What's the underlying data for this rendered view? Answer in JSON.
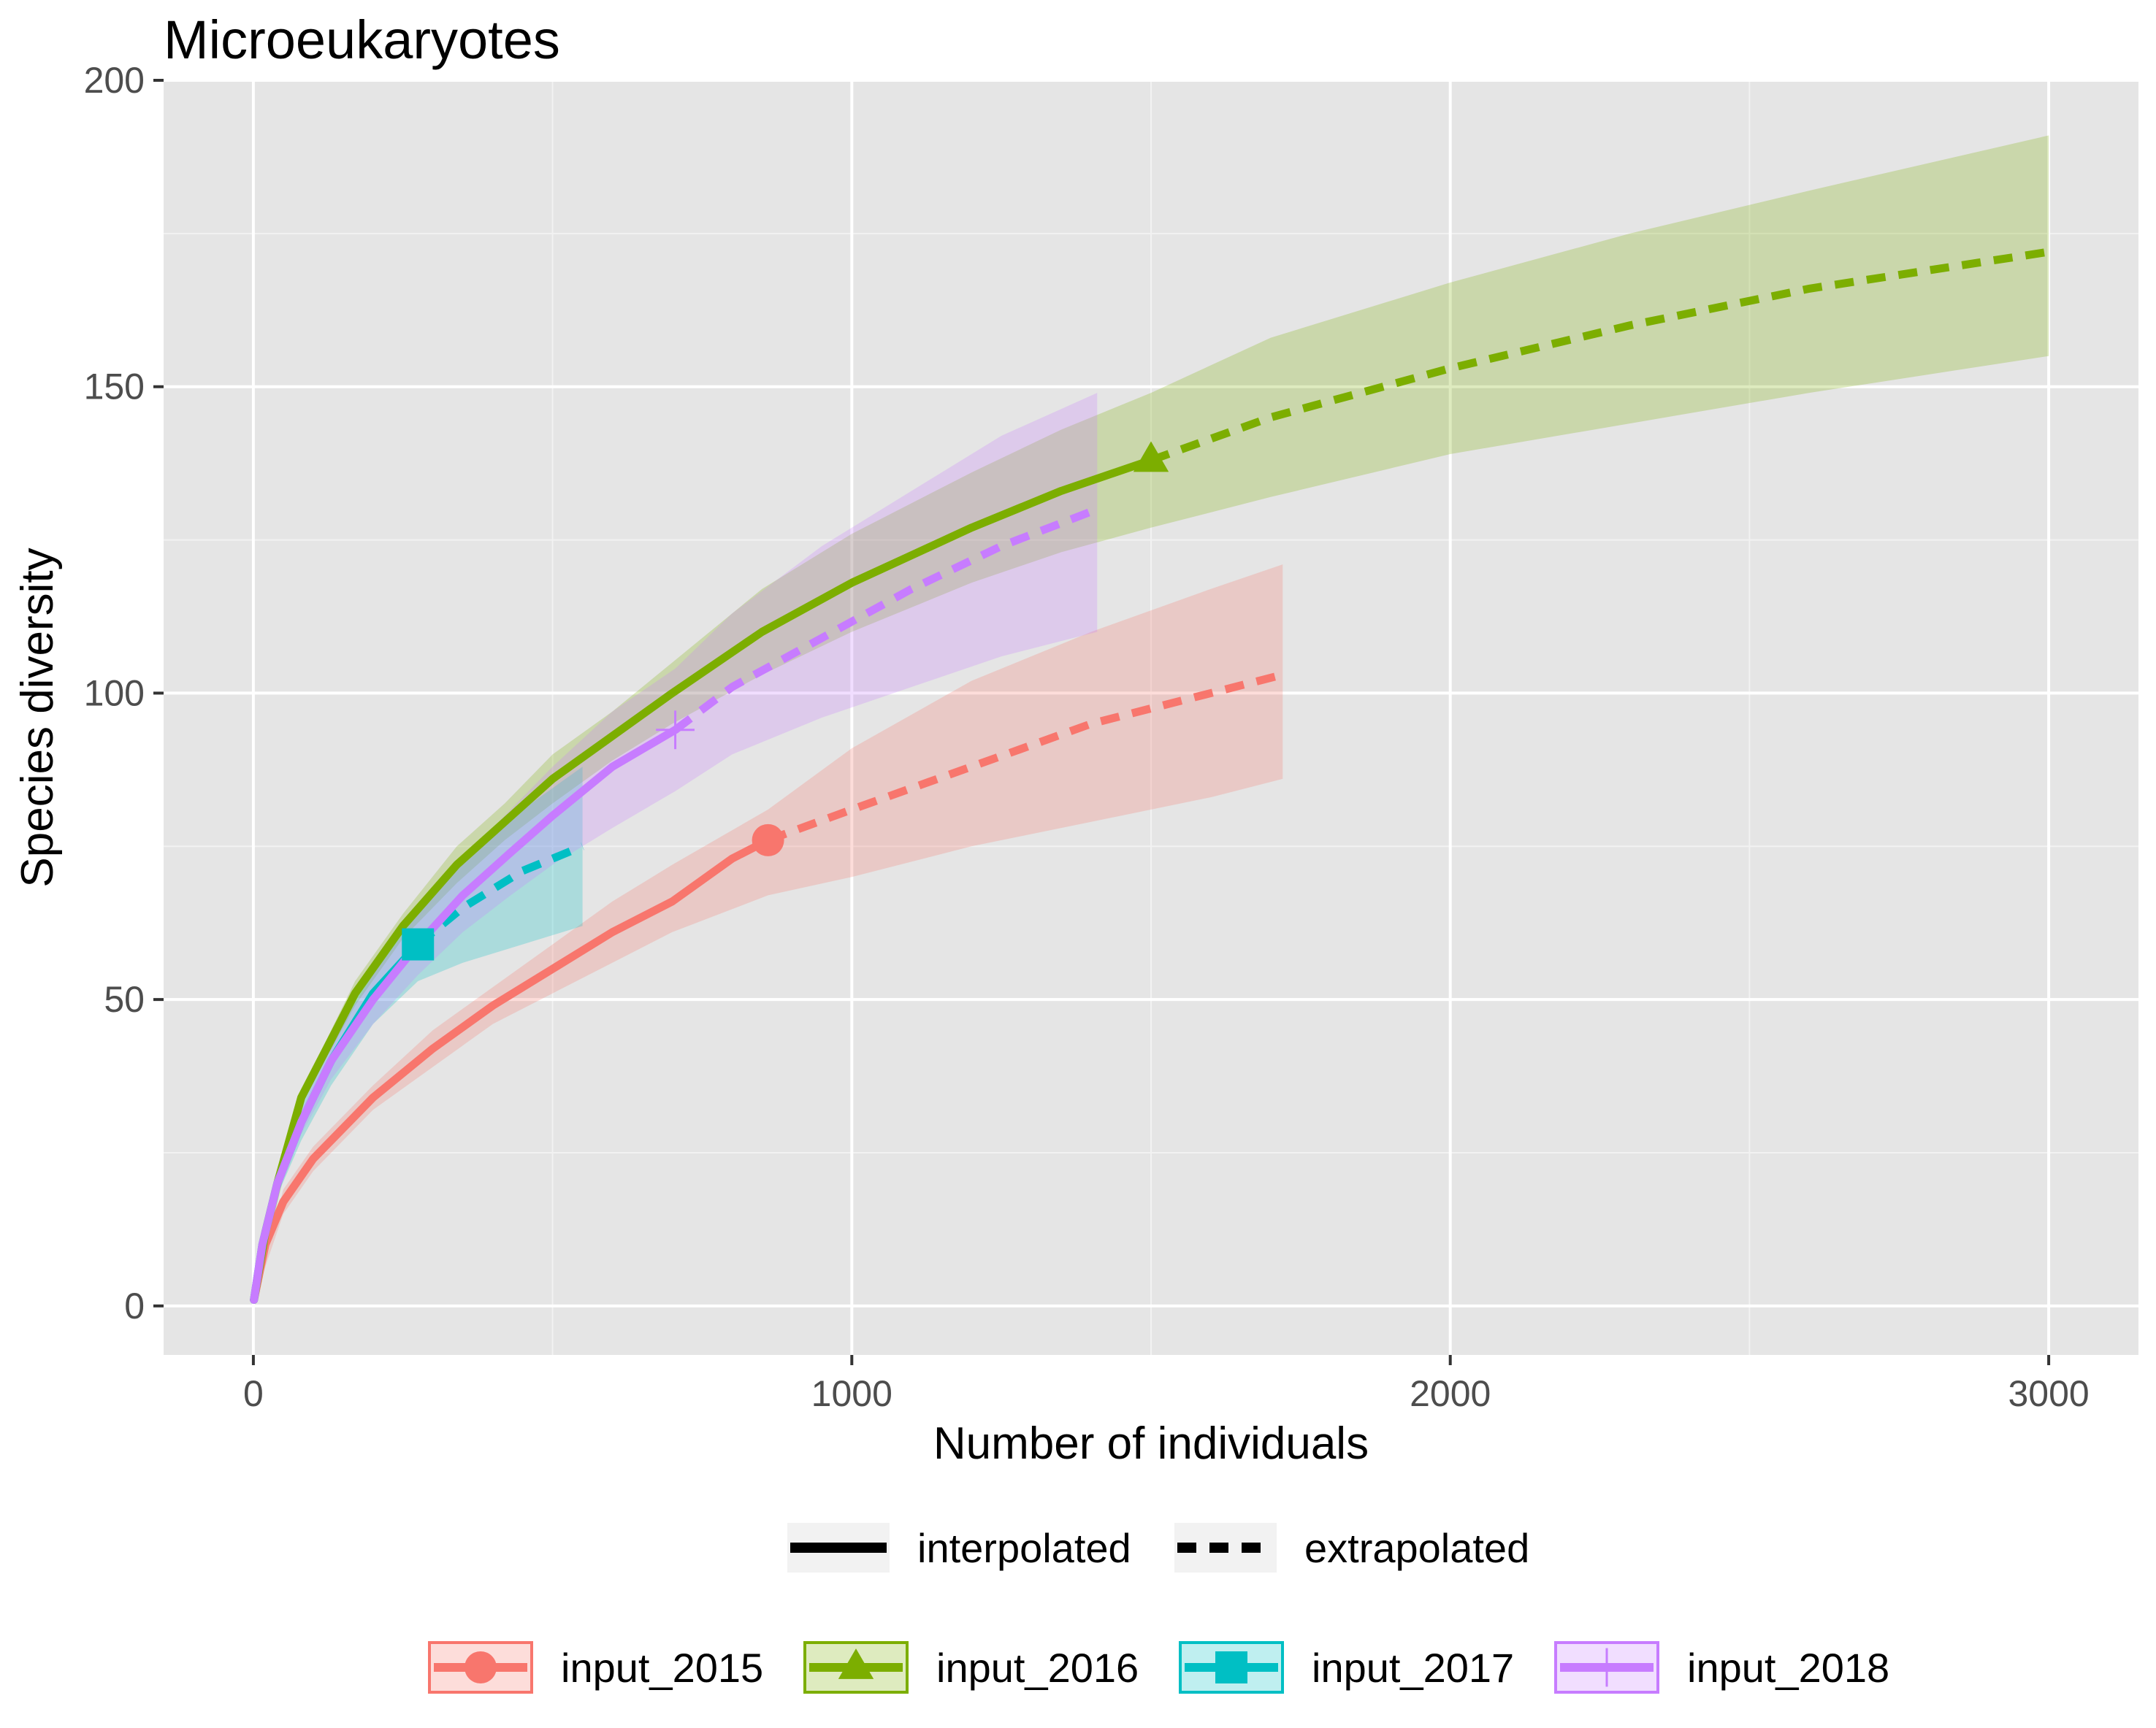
{
  "chart_data": {
    "type": "line",
    "title": "Microeukaryotes",
    "xlabel": "Number of individuals",
    "ylabel": "Species diversity",
    "xlim": [
      -150,
      3150
    ],
    "ylim": [
      -8,
      200
    ],
    "x_ticks": [
      0,
      1000,
      2000,
      3000
    ],
    "x_tick_labels": [
      "0",
      "1000",
      "2000",
      "3000"
    ],
    "y_ticks": [
      0,
      50,
      100,
      150,
      200
    ],
    "y_tick_labels": [
      "0",
      "50",
      "100",
      "150",
      "200"
    ],
    "x_minor_ticks": [
      500,
      1500,
      2500
    ],
    "y_minor_ticks": [
      25,
      75,
      125,
      175
    ],
    "grid": true,
    "legend_position": "bottom",
    "linetype_legend": [
      {
        "label": "interpolated",
        "style": "solid"
      },
      {
        "label": "extrapolated",
        "style": "dashed"
      }
    ],
    "series": [
      {
        "name": "input_2015",
        "color": "#F8766D",
        "marker": "circle",
        "observed": {
          "x": 860,
          "y": 76
        },
        "interpolated": [
          [
            1,
            1
          ],
          [
            20,
            10
          ],
          [
            50,
            17
          ],
          [
            100,
            24
          ],
          [
            200,
            34
          ],
          [
            300,
            42
          ],
          [
            400,
            49
          ],
          [
            500,
            55
          ],
          [
            600,
            61
          ],
          [
            700,
            66
          ],
          [
            800,
            73
          ],
          [
            860,
            76
          ]
        ],
        "extrapolated": [
          [
            860,
            76
          ],
          [
            1000,
            81
          ],
          [
            1200,
            88
          ],
          [
            1400,
            95
          ],
          [
            1600,
            100
          ],
          [
            1720,
            103
          ]
        ],
        "ci_lower": [
          [
            1,
            1
          ],
          [
            50,
            15
          ],
          [
            100,
            22
          ],
          [
            200,
            32
          ],
          [
            300,
            39
          ],
          [
            400,
            46
          ],
          [
            500,
            51
          ],
          [
            600,
            56
          ],
          [
            700,
            61
          ],
          [
            860,
            67
          ],
          [
            1000,
            70
          ],
          [
            1200,
            75
          ],
          [
            1400,
            79
          ],
          [
            1600,
            83
          ],
          [
            1720,
            86
          ]
        ],
        "ci_upper": [
          [
            1,
            1
          ],
          [
            50,
            19
          ],
          [
            100,
            26
          ],
          [
            200,
            36
          ],
          [
            300,
            45
          ],
          [
            400,
            52
          ],
          [
            500,
            59
          ],
          [
            600,
            66
          ],
          [
            700,
            72
          ],
          [
            860,
            81
          ],
          [
            1000,
            91
          ],
          [
            1200,
            102
          ],
          [
            1400,
            110
          ],
          [
            1600,
            117
          ],
          [
            1720,
            121
          ]
        ]
      },
      {
        "name": "input_2016",
        "color": "#7CAE00",
        "marker": "triangle",
        "observed": {
          "x": 1500,
          "y": 138
        },
        "interpolated": [
          [
            1,
            1
          ],
          [
            20,
            12
          ],
          [
            40,
            20
          ],
          [
            80,
            34
          ],
          [
            170,
            51
          ],
          [
            250,
            62
          ],
          [
            340,
            72
          ],
          [
            420,
            79
          ],
          [
            500,
            86
          ],
          [
            600,
            93
          ],
          [
            700,
            100
          ],
          [
            850,
            110
          ],
          [
            1000,
            118
          ],
          [
            1200,
            127
          ],
          [
            1350,
            133
          ],
          [
            1500,
            138
          ]
        ],
        "extrapolated": [
          [
            1500,
            138
          ],
          [
            1700,
            145
          ],
          [
            2000,
            153
          ],
          [
            2300,
            160
          ],
          [
            2600,
            166
          ],
          [
            3000,
            172
          ]
        ],
        "ci_lower": [
          [
            1,
            1
          ],
          [
            80,
            33
          ],
          [
            170,
            49
          ],
          [
            250,
            60
          ],
          [
            340,
            69
          ],
          [
            420,
            76
          ],
          [
            500,
            82
          ],
          [
            600,
            89
          ],
          [
            700,
            95
          ],
          [
            850,
            103
          ],
          [
            1000,
            110
          ],
          [
            1200,
            118
          ],
          [
            1350,
            123
          ],
          [
            1500,
            127
          ],
          [
            1700,
            132
          ],
          [
            2000,
            139
          ],
          [
            2300,
            144
          ],
          [
            2600,
            149
          ],
          [
            3000,
            155
          ]
        ],
        "ci_upper": [
          [
            1,
            1
          ],
          [
            80,
            35
          ],
          [
            170,
            53
          ],
          [
            250,
            64
          ],
          [
            340,
            75
          ],
          [
            420,
            82
          ],
          [
            500,
            90
          ],
          [
            600,
            97
          ],
          [
            700,
            105
          ],
          [
            850,
            117
          ],
          [
            1000,
            126
          ],
          [
            1200,
            136
          ],
          [
            1350,
            143
          ],
          [
            1500,
            149
          ],
          [
            1700,
            158
          ],
          [
            2000,
            167
          ],
          [
            2300,
            175
          ],
          [
            2600,
            182
          ],
          [
            3000,
            191
          ]
        ]
      },
      {
        "name": "input_2017",
        "color": "#00BFC4",
        "marker": "square",
        "observed": {
          "x": 275,
          "y": 59
        },
        "interpolated": [
          [
            1,
            1
          ],
          [
            15,
            10
          ],
          [
            40,
            20
          ],
          [
            80,
            30
          ],
          [
            130,
            40
          ],
          [
            200,
            51
          ],
          [
            275,
            59
          ]
        ],
        "extrapolated": [
          [
            275,
            59
          ],
          [
            350,
            65
          ],
          [
            450,
            71
          ],
          [
            550,
            75
          ]
        ],
        "ci_lower": [
          [
            1,
            1
          ],
          [
            40,
            18
          ],
          [
            80,
            27
          ],
          [
            130,
            36
          ],
          [
            200,
            46
          ],
          [
            275,
            53
          ],
          [
            350,
            56
          ],
          [
            450,
            59
          ],
          [
            550,
            62
          ]
        ],
        "ci_upper": [
          [
            1,
            1
          ],
          [
            40,
            22
          ],
          [
            80,
            33
          ],
          [
            130,
            44
          ],
          [
            200,
            56
          ],
          [
            275,
            65
          ],
          [
            350,
            73
          ],
          [
            450,
            81
          ],
          [
            550,
            88
          ]
        ]
      },
      {
        "name": "input_2018",
        "color": "#C77CFF",
        "marker": "plus",
        "observed": {
          "x": 705,
          "y": 94
        },
        "interpolated": [
          [
            1,
            1
          ],
          [
            15,
            10
          ],
          [
            40,
            20
          ],
          [
            80,
            30
          ],
          [
            130,
            40
          ],
          [
            200,
            50
          ],
          [
            275,
            59
          ],
          [
            350,
            67
          ],
          [
            430,
            74
          ],
          [
            500,
            80
          ],
          [
            600,
            88
          ],
          [
            705,
            94
          ]
        ],
        "extrapolated": [
          [
            705,
            94
          ],
          [
            800,
            101
          ],
          [
            950,
            109
          ],
          [
            1100,
            117
          ],
          [
            1250,
            124
          ],
          [
            1410,
            130
          ]
        ],
        "ci_lower": [
          [
            1,
            1
          ],
          [
            40,
            18
          ],
          [
            80,
            28
          ],
          [
            130,
            37
          ],
          [
            200,
            46
          ],
          [
            275,
            54
          ],
          [
            350,
            61
          ],
          [
            430,
            67
          ],
          [
            500,
            72
          ],
          [
            600,
            78
          ],
          [
            705,
            84
          ],
          [
            800,
            90
          ],
          [
            950,
            96
          ],
          [
            1100,
            101
          ],
          [
            1250,
            106
          ],
          [
            1410,
            110
          ]
        ],
        "ci_upper": [
          [
            1,
            1
          ],
          [
            40,
            22
          ],
          [
            80,
            32
          ],
          [
            130,
            43
          ],
          [
            200,
            54
          ],
          [
            275,
            64
          ],
          [
            350,
            73
          ],
          [
            430,
            81
          ],
          [
            500,
            88
          ],
          [
            600,
            97
          ],
          [
            705,
            104
          ],
          [
            800,
            113
          ],
          [
            950,
            124
          ],
          [
            1100,
            133
          ],
          [
            1250,
            142
          ],
          [
            1410,
            149
          ]
        ]
      }
    ]
  }
}
